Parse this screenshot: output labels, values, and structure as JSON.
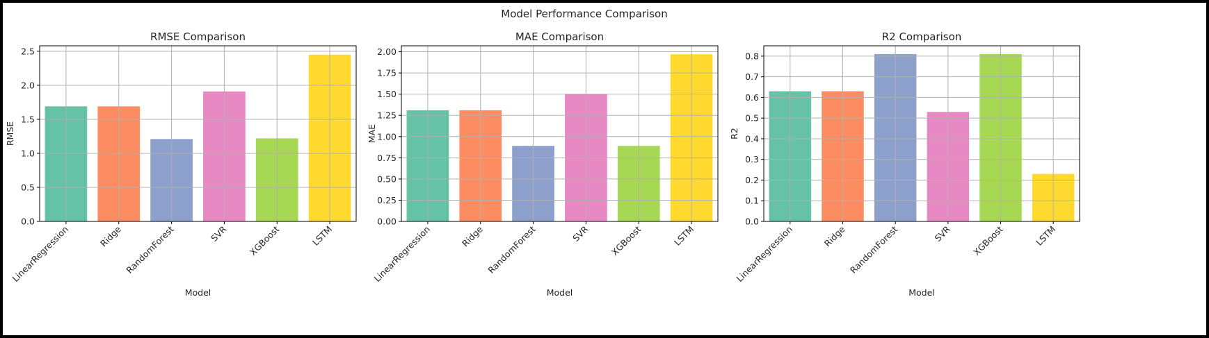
{
  "figure": {
    "suptitle": "Model Performance Comparison"
  },
  "palette": [
    "#66c2a5",
    "#fc8d62",
    "#8da0cb",
    "#e78ac3",
    "#a6d854",
    "#ffd92f"
  ],
  "chart_data": [
    {
      "type": "bar",
      "title": "RMSE Comparison",
      "xlabel": "Model",
      "ylabel": "RMSE",
      "categories": [
        "LinearRegression",
        "Ridge",
        "RandomForest",
        "SVR",
        "XGBoost",
        "LSTM"
      ],
      "values": [
        1.69,
        1.69,
        1.21,
        1.91,
        1.22,
        2.45
      ],
      "ylim": [
        0,
        2.58
      ],
      "yticks": [
        0.0,
        0.5,
        1.0,
        1.5,
        2.0,
        2.5
      ],
      "ytick_labels": [
        "0.0",
        "0.5",
        "1.0",
        "1.5",
        "2.0",
        "2.5"
      ],
      "grid": true
    },
    {
      "type": "bar",
      "title": "MAE Comparison",
      "xlabel": "Model",
      "ylabel": "MAE",
      "categories": [
        "LinearRegression",
        "Ridge",
        "RandomForest",
        "SVR",
        "XGBoost",
        "LSTM"
      ],
      "values": [
        1.31,
        1.31,
        0.89,
        1.5,
        0.89,
        1.97
      ],
      "ylim": [
        0,
        2.07
      ],
      "yticks": [
        0.0,
        0.25,
        0.5,
        0.75,
        1.0,
        1.25,
        1.5,
        1.75,
        2.0
      ],
      "ytick_labels": [
        "0.00",
        "0.25",
        "0.50",
        "0.75",
        "1.00",
        "1.25",
        "1.50",
        "1.75",
        "2.00"
      ],
      "grid": true
    },
    {
      "type": "bar",
      "title": "R2 Comparison",
      "xlabel": "Model",
      "ylabel": "R2",
      "categories": [
        "LinearRegression",
        "Ridge",
        "RandomForest",
        "SVR",
        "XGBoost",
        "LSTM"
      ],
      "values": [
        0.63,
        0.63,
        0.81,
        0.53,
        0.81,
        0.23
      ],
      "ylim": [
        0,
        0.85
      ],
      "yticks": [
        0.0,
        0.1,
        0.2,
        0.3,
        0.4,
        0.5,
        0.6,
        0.7,
        0.8
      ],
      "ytick_labels": [
        "0.0",
        "0.1",
        "0.2",
        "0.3",
        "0.4",
        "0.5",
        "0.6",
        "0.7",
        "0.8"
      ],
      "grid": true
    }
  ]
}
